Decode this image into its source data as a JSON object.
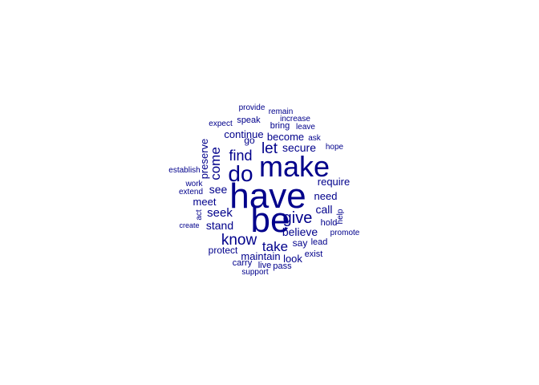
{
  "chart_data": {
    "type": "wordcloud",
    "color": "#00008B",
    "words": [
      {
        "word": "have"
      },
      {
        "word": "be"
      },
      {
        "word": "make"
      },
      {
        "word": "do"
      },
      {
        "word": "know"
      },
      {
        "word": "give"
      },
      {
        "word": "take"
      },
      {
        "word": "find"
      },
      {
        "word": "come"
      },
      {
        "word": "let"
      },
      {
        "word": "seek"
      },
      {
        "word": "see"
      },
      {
        "word": "stand"
      },
      {
        "word": "believe"
      },
      {
        "word": "call"
      },
      {
        "word": "secure"
      },
      {
        "word": "need"
      },
      {
        "word": "preserve"
      },
      {
        "word": "require"
      },
      {
        "word": "become"
      },
      {
        "word": "continue"
      },
      {
        "word": "meet"
      },
      {
        "word": "maintain"
      },
      {
        "word": "look"
      },
      {
        "word": "say"
      },
      {
        "word": "protect"
      },
      {
        "word": "speak"
      },
      {
        "word": "bring"
      },
      {
        "word": "go"
      },
      {
        "word": "hold"
      },
      {
        "word": "carry"
      },
      {
        "word": "pass"
      },
      {
        "word": "live"
      },
      {
        "word": "lead"
      },
      {
        "word": "exist"
      },
      {
        "word": "help"
      },
      {
        "word": "ask"
      },
      {
        "word": "leave"
      },
      {
        "word": "increase"
      },
      {
        "word": "remain"
      },
      {
        "word": "provide"
      },
      {
        "word": "expect"
      },
      {
        "word": "hope"
      },
      {
        "word": "establish"
      },
      {
        "word": "work"
      },
      {
        "word": "extend"
      },
      {
        "word": "act"
      },
      {
        "word": "create"
      },
      {
        "word": "promote"
      },
      {
        "word": "support"
      }
    ]
  }
}
